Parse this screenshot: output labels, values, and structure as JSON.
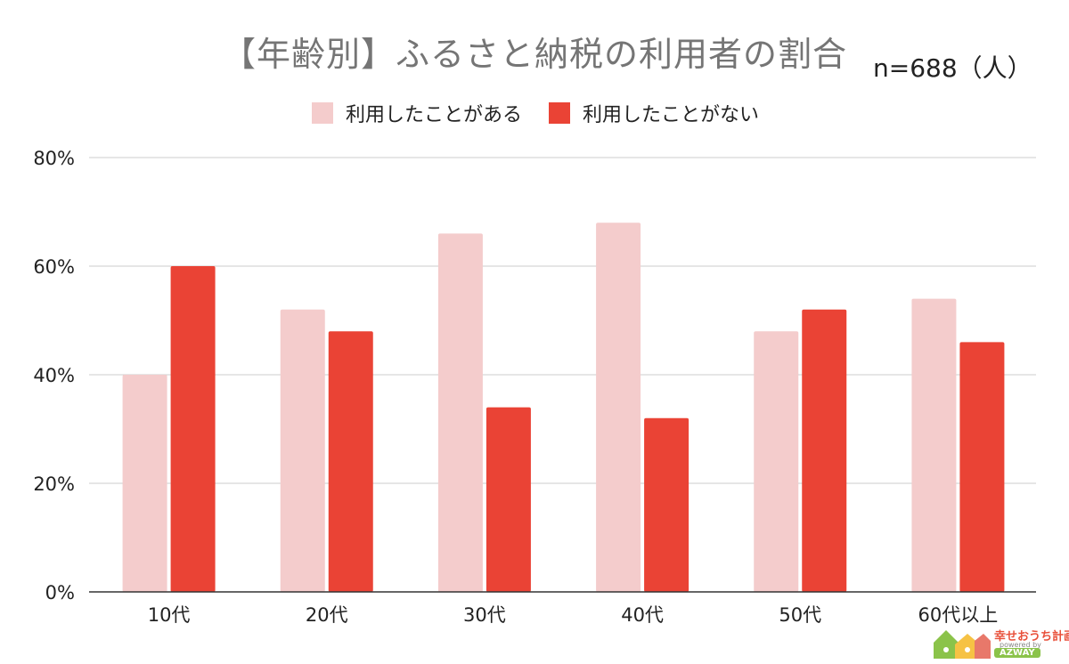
{
  "chart_data": {
    "type": "bar",
    "title": "【年齢別】ふるさと納税の利用者の割合",
    "note": "n=688（人）",
    "categories": [
      "10代",
      "20代",
      "30代",
      "40代",
      "50代",
      "60代以上"
    ],
    "series": [
      {
        "name": "利用したことがある",
        "color": "#f4cccc",
        "values": [
          40,
          52,
          66,
          68,
          48,
          54
        ]
      },
      {
        "name": "利用したことがない",
        "color": "#ea4335",
        "values": [
          60,
          48,
          34,
          32,
          52,
          46
        ]
      }
    ],
    "ylim": [
      0,
      80
    ],
    "yticks": [
      "0%",
      "20%",
      "40%",
      "60%",
      "80%"
    ],
    "ytick_values": [
      0,
      20,
      40,
      60,
      80
    ],
    "grid": true,
    "legend_position": "top"
  },
  "logo": {
    "text": "幸せおうち計画",
    "sub": "powered by",
    "brand": "AZWAY"
  }
}
